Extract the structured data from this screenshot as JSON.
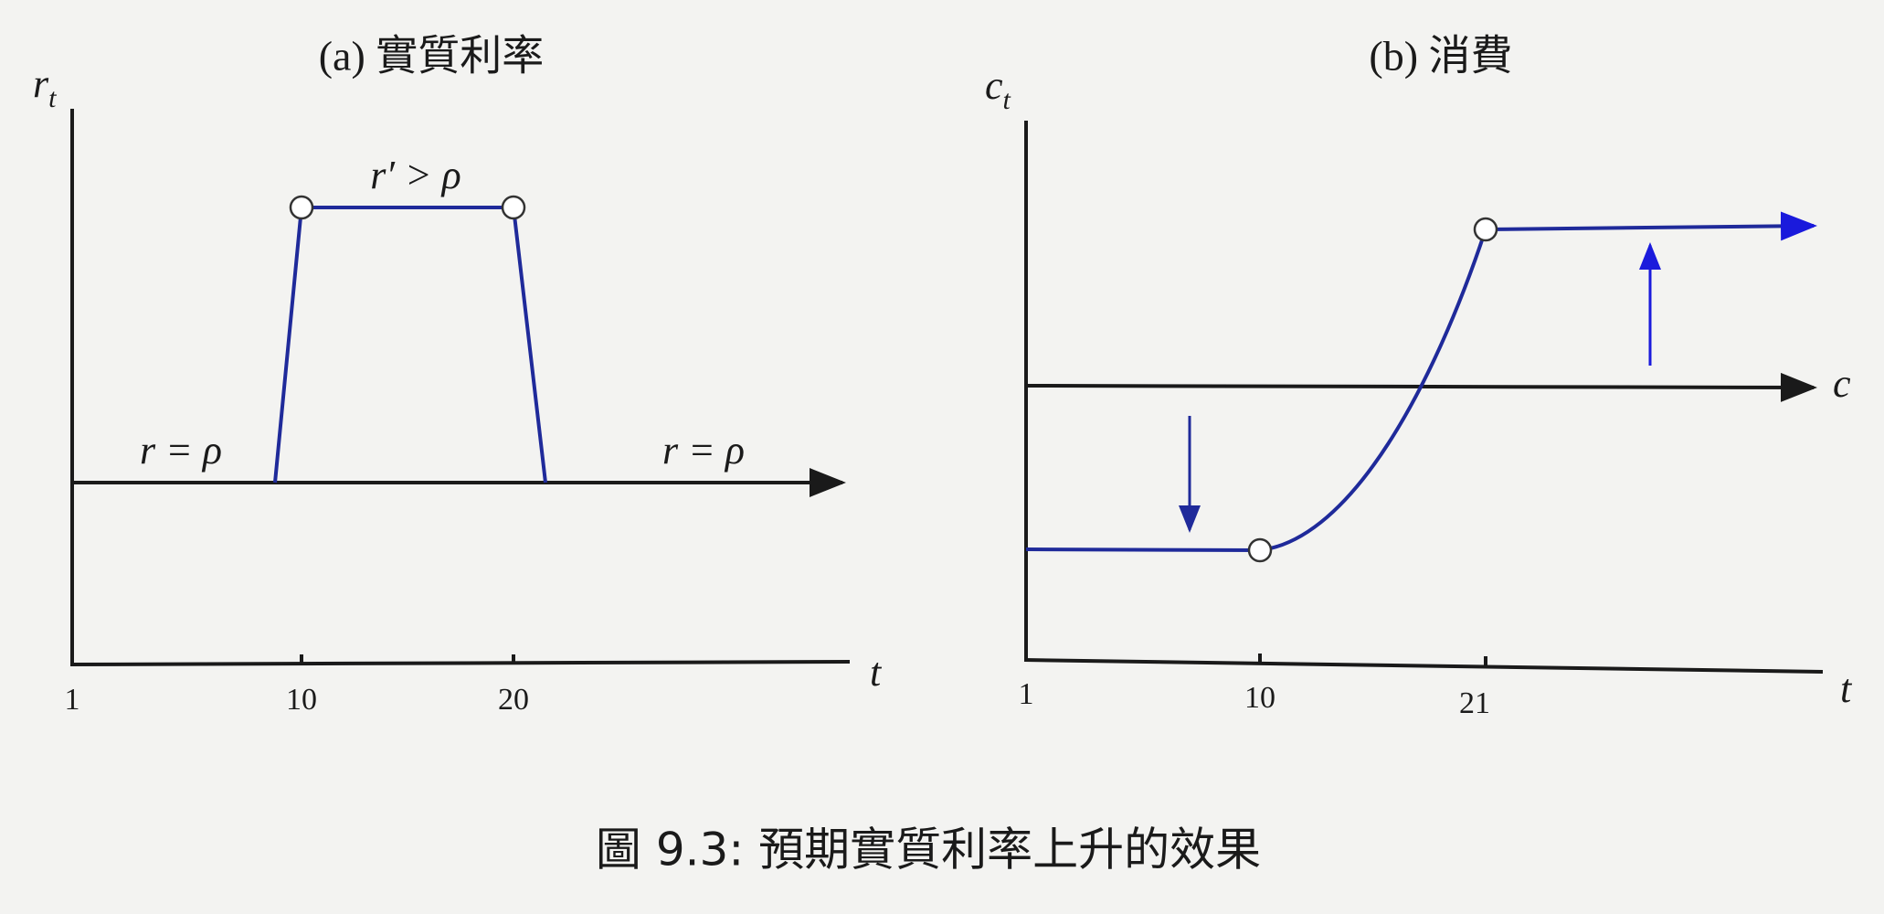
{
  "panels": [
    {
      "title": "(a) 實質利率",
      "y_label": {
        "symbol": "r",
        "subscript": "t"
      },
      "x_label": "t",
      "x_ticks": [
        "1",
        "10",
        "20"
      ],
      "annotations": [
        "r′ > ρ",
        "r = ρ",
        "r = ρ"
      ]
    },
    {
      "title": "(b) 消費",
      "y_label": {
        "symbol": "c",
        "subscript": "t"
      },
      "x_label": "t",
      "x_ticks": [
        "1",
        "10",
        "21"
      ],
      "annotations": [
        "c"
      ]
    }
  ],
  "caption": "圖 9.3: 預期實質利率上升的效果"
}
